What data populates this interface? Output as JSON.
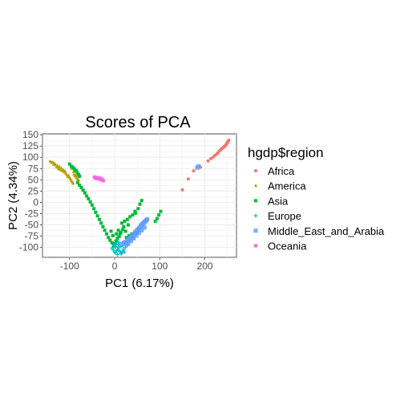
{
  "chart_data": {
    "type": "scatter",
    "title": "Scores of PCA",
    "xlabel": "PC1 (6.17%)",
    "ylabel": "PC2 (4.34%)",
    "xlim": [
      -160,
      270
    ],
    "ylim": [
      -122,
      152
    ],
    "xticks": [
      -100,
      0,
      100,
      200
    ],
    "yticks": [
      -100,
      -75,
      -50,
      -25,
      0,
      25,
      50,
      75,
      100,
      125,
      150
    ],
    "grid": true,
    "legend": {
      "title": "hgdp$region",
      "position": "right"
    },
    "series": [
      {
        "name": "Africa",
        "color": "#F8766D",
        "marker": "circle",
        "points": [
          [
            150,
            28
          ],
          [
            163,
            52
          ],
          [
            175,
            70
          ],
          [
            190,
            78
          ],
          [
            207,
            92
          ],
          [
            213,
            97
          ],
          [
            218,
            100
          ],
          [
            222,
            104
          ],
          [
            226,
            107
          ],
          [
            229,
            110
          ],
          [
            232,
            114
          ],
          [
            235,
            117
          ],
          [
            237,
            119
          ],
          [
            240,
            121
          ],
          [
            242,
            123
          ],
          [
            244,
            124
          ],
          [
            245,
            126
          ],
          [
            247,
            128
          ],
          [
            248,
            130
          ],
          [
            249,
            132
          ],
          [
            250,
            133
          ],
          [
            251,
            135
          ],
          [
            252,
            136
          ],
          [
            253,
            138
          ]
        ]
      },
      {
        "name": "America",
        "color": "#B79F00",
        "marker": "triangle",
        "points": [
          [
            -143,
            91
          ],
          [
            -140,
            88
          ],
          [
            -137,
            89
          ],
          [
            -135,
            84
          ],
          [
            -133,
            86
          ],
          [
            -131,
            83
          ],
          [
            -129,
            79
          ],
          [
            -127,
            81
          ],
          [
            -125,
            77
          ],
          [
            -124,
            74
          ],
          [
            -122,
            79
          ],
          [
            -120,
            72
          ],
          [
            -118,
            75
          ],
          [
            -116,
            70
          ],
          [
            -114,
            72
          ],
          [
            -112,
            67
          ],
          [
            -110,
            69
          ],
          [
            -108,
            64
          ],
          [
            -106,
            61
          ],
          [
            -104,
            57
          ],
          [
            -102,
            59
          ],
          [
            -100,
            55
          ],
          [
            -98,
            52
          ],
          [
            -96,
            48
          ],
          [
            -94,
            45
          ],
          [
            -92,
            42
          ],
          [
            -90,
            62
          ],
          [
            -88,
            58
          ],
          [
            -86,
            60
          ],
          [
            -84,
            55
          ],
          [
            -82,
            52
          ],
          [
            -80,
            50
          ],
          [
            -95,
            75
          ],
          [
            -91,
            68
          ]
        ]
      },
      {
        "name": "Asia",
        "color": "#00BA38",
        "marker": "square",
        "points": [
          [
            -100,
            85
          ],
          [
            -96,
            80
          ],
          [
            -93,
            78
          ],
          [
            -90,
            75
          ],
          [
            -88,
            72
          ],
          [
            -85,
            70
          ],
          [
            -83,
            66
          ],
          [
            -80,
            62
          ],
          [
            -78,
            58
          ],
          [
            -82,
            44
          ],
          [
            -78,
            38
          ],
          [
            -74,
            33
          ],
          [
            -70,
            27
          ],
          [
            -66,
            21
          ],
          [
            -62,
            14
          ],
          [
            -58,
            8
          ],
          [
            -54,
            1
          ],
          [
            -50,
            -6
          ],
          [
            -46,
            -14
          ],
          [
            -42,
            -22
          ],
          [
            -38,
            -30
          ],
          [
            -34,
            -38
          ],
          [
            -30,
            -46
          ],
          [
            -26,
            -54
          ],
          [
            -22,
            -62
          ],
          [
            -18,
            -70
          ],
          [
            -14,
            -78
          ],
          [
            -10,
            -84
          ],
          [
            -6,
            -90
          ],
          [
            -2,
            -96
          ],
          [
            0,
            -92
          ],
          [
            3,
            -86
          ],
          [
            6,
            -80
          ],
          [
            10,
            -76
          ],
          [
            12,
            -70
          ],
          [
            14,
            -66
          ],
          [
            18,
            -60
          ],
          [
            20,
            -54
          ],
          [
            16,
            -46
          ],
          [
            22,
            -42
          ],
          [
            28,
            -38
          ],
          [
            34,
            -32
          ],
          [
            40,
            -28
          ],
          [
            46,
            -24
          ],
          [
            52,
            -14
          ],
          [
            56,
            -4
          ],
          [
            60,
            4
          ],
          [
            45,
            -20
          ],
          [
            30,
            -50
          ],
          [
            24,
            -64
          ],
          [
            8,
            -62
          ],
          [
            4,
            -70
          ],
          [
            -4,
            -74
          ],
          [
            -8,
            -64
          ],
          [
            38,
            -70
          ],
          [
            44,
            -68
          ],
          [
            50,
            -66
          ],
          [
            26,
            -78
          ],
          [
            32,
            -74
          ],
          [
            98,
            -28
          ],
          [
            102,
            -20
          ],
          [
            94,
            -36
          ],
          [
            90,
            -42
          ]
        ]
      },
      {
        "name": "Europe",
        "color": "#00BFC4",
        "marker": "plus",
        "points": [
          [
            -6,
            -102
          ],
          [
            -3,
            -106
          ],
          [
            0,
            -110
          ],
          [
            2,
            -112
          ],
          [
            4,
            -108
          ],
          [
            6,
            -104
          ],
          [
            8,
            -100
          ],
          [
            10,
            -106
          ],
          [
            12,
            -110
          ],
          [
            14,
            -114
          ],
          [
            16,
            -112
          ],
          [
            18,
            -108
          ],
          [
            20,
            -104
          ],
          [
            22,
            -110
          ],
          [
            2,
            -98
          ],
          [
            0,
            -94
          ],
          [
            -2,
            -100
          ],
          [
            6,
            -116
          ],
          [
            10,
            -94
          ],
          [
            14,
            -98
          ],
          [
            18,
            -96
          ],
          [
            24,
            -100
          ],
          [
            4,
            -92
          ],
          [
            8,
            -88
          ]
        ]
      },
      {
        "name": "Middle_East_and_Arabia",
        "color": "#619CFF",
        "marker": "boxx",
        "points": [
          [
            16,
            -92
          ],
          [
            20,
            -90
          ],
          [
            24,
            -88
          ],
          [
            28,
            -86
          ],
          [
            30,
            -84
          ],
          [
            32,
            -82
          ],
          [
            34,
            -80
          ],
          [
            36,
            -78
          ],
          [
            38,
            -76
          ],
          [
            40,
            -74
          ],
          [
            42,
            -72
          ],
          [
            44,
            -70
          ],
          [
            46,
            -66
          ],
          [
            48,
            -64
          ],
          [
            50,
            -62
          ],
          [
            52,
            -60
          ],
          [
            54,
            -58
          ],
          [
            56,
            -56
          ],
          [
            58,
            -52
          ],
          [
            60,
            -50
          ],
          [
            62,
            -48
          ],
          [
            64,
            -46
          ],
          [
            66,
            -44
          ],
          [
            68,
            -42
          ],
          [
            70,
            -40
          ],
          [
            72,
            -38
          ],
          [
            26,
            -94
          ],
          [
            30,
            -92
          ],
          [
            36,
            -86
          ],
          [
            42,
            -80
          ],
          [
            48,
            -74
          ],
          [
            54,
            -68
          ],
          [
            60,
            -62
          ],
          [
            66,
            -56
          ],
          [
            183,
            77
          ],
          [
            186,
            80
          ]
        ]
      },
      {
        "name": "Oceania",
        "color": "#F564E3",
        "marker": "star",
        "points": [
          [
            -45,
            56
          ],
          [
            -42,
            53
          ],
          [
            -39,
            55
          ],
          [
            -36,
            52
          ],
          [
            -33,
            54
          ],
          [
            -30,
            50
          ],
          [
            -28,
            52
          ],
          [
            -25,
            48
          ]
        ]
      }
    ]
  }
}
